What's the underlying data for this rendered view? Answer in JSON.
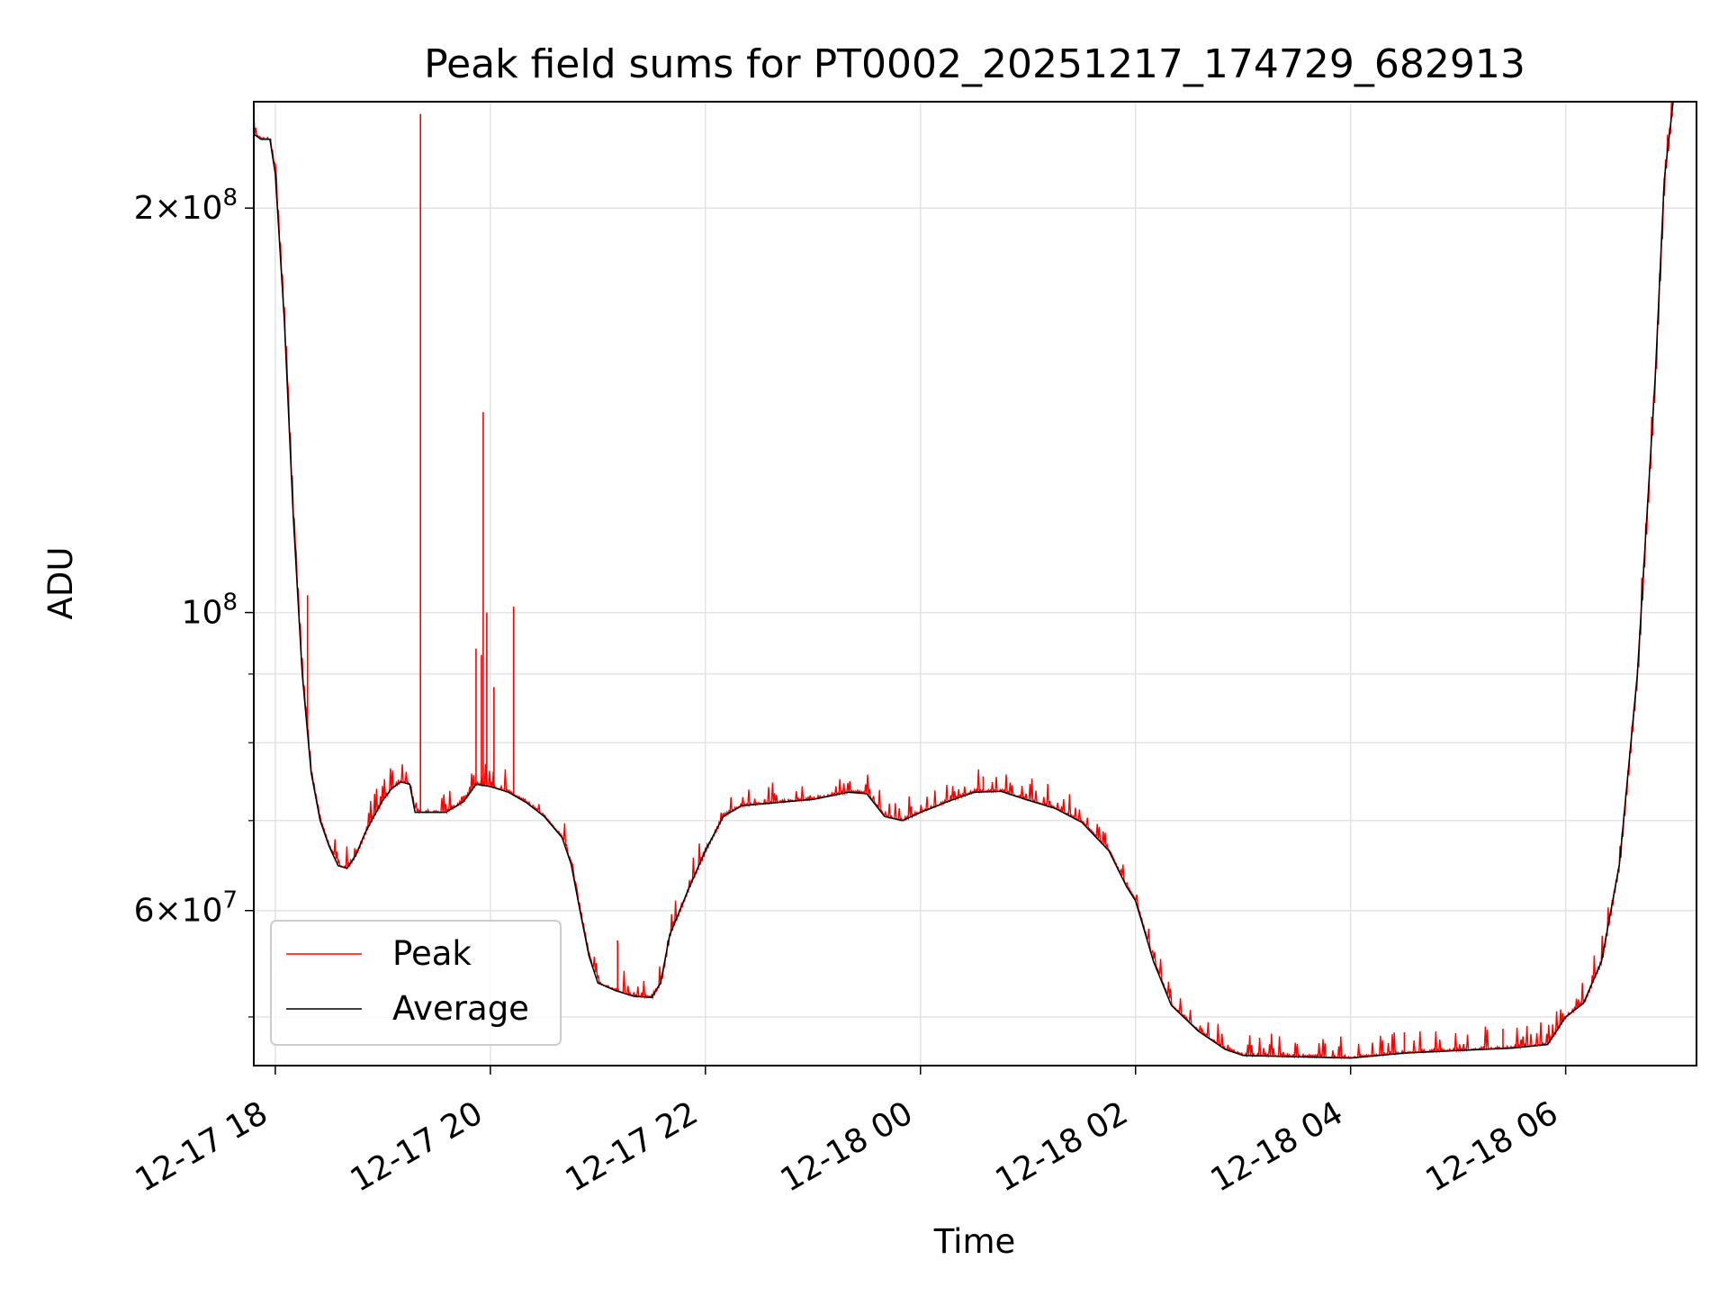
{
  "chart_data": {
    "type": "line",
    "title": "Peak field sums for PT0002_20251217_174729_682913",
    "xlabel": "Time",
    "ylabel": "ADU",
    "y_scale": "log",
    "ylim": [
      46000000,
      240000000
    ],
    "xlim": [
      "2025-12-17 17:48",
      "2025-12-18 07:13"
    ],
    "grid": true,
    "legend_position": "lower-left",
    "x_ticks": [
      {
        "t": "2025-12-17 18:00",
        "label": "12-17 18"
      },
      {
        "t": "2025-12-17 20:00",
        "label": "12-17 20"
      },
      {
        "t": "2025-12-17 22:00",
        "label": "12-17 22"
      },
      {
        "t": "2025-12-18 00:00",
        "label": "12-18 00"
      },
      {
        "t": "2025-12-18 02:00",
        "label": "12-18 02"
      },
      {
        "t": "2025-12-18 04:00",
        "label": "12-18 04"
      },
      {
        "t": "2025-12-18 06:00",
        "label": "12-18 06"
      }
    ],
    "y_ticks": [
      {
        "value": 60000000,
        "base": "6",
        "exp": "7"
      },
      {
        "value": 100000000,
        "base": "",
        "exp": "8"
      },
      {
        "value": 200000000,
        "base": "2",
        "exp": "8"
      }
    ],
    "y_minor_ticks": [
      50000000,
      70000000,
      80000000,
      90000000
    ],
    "series": [
      {
        "name": "Average",
        "color": "#000000",
        "points": [
          [
            "2025-12-17 17:48",
            227000000
          ],
          [
            "2025-12-17 17:52",
            225000000
          ],
          [
            "2025-12-17 17:57",
            225000000
          ],
          [
            "2025-12-17 18:00",
            212000000
          ],
          [
            "2025-12-17 18:05",
            165000000
          ],
          [
            "2025-12-17 18:10",
            118000000
          ],
          [
            "2025-12-17 18:15",
            90000000
          ],
          [
            "2025-12-17 18:20",
            76000000
          ],
          [
            "2025-12-17 18:25",
            70000000
          ],
          [
            "2025-12-17 18:30",
            67000000
          ],
          [
            "2025-12-17 18:35",
            64800000
          ],
          [
            "2025-12-17 18:40",
            64500000
          ],
          [
            "2025-12-17 18:45",
            66000000
          ],
          [
            "2025-12-17 18:50",
            68500000
          ],
          [
            "2025-12-17 18:55",
            70500000
          ],
          [
            "2025-12-17 19:00",
            72500000
          ],
          [
            "2025-12-17 19:05",
            74000000
          ],
          [
            "2025-12-17 19:10",
            74800000
          ],
          [
            "2025-12-17 19:15",
            74500000
          ],
          [
            "2025-12-17 19:18",
            71000000
          ],
          [
            "2025-12-17 19:25",
            71000000
          ],
          [
            "2025-12-17 19:35",
            71000000
          ],
          [
            "2025-12-17 19:45",
            72300000
          ],
          [
            "2025-12-17 19:52",
            74500000
          ],
          [
            "2025-12-17 20:00",
            74200000
          ],
          [
            "2025-12-17 20:10",
            73500000
          ],
          [
            "2025-12-17 20:20",
            72200000
          ],
          [
            "2025-12-17 20:30",
            70500000
          ],
          [
            "2025-12-17 20:40",
            68000000
          ],
          [
            "2025-12-17 20:45",
            65000000
          ],
          [
            "2025-12-17 20:50",
            60000000
          ],
          [
            "2025-12-17 20:55",
            55500000
          ],
          [
            "2025-12-17 21:00",
            53000000
          ],
          [
            "2025-12-17 21:10",
            52300000
          ],
          [
            "2025-12-17 21:20",
            51800000
          ],
          [
            "2025-12-17 21:30",
            51700000
          ],
          [
            "2025-12-17 21:35",
            53000000
          ],
          [
            "2025-12-17 21:40",
            57500000
          ],
          [
            "2025-12-17 21:50",
            62000000
          ],
          [
            "2025-12-17 22:00",
            66500000
          ],
          [
            "2025-12-17 22:10",
            70500000
          ],
          [
            "2025-12-17 22:20",
            71800000
          ],
          [
            "2025-12-17 22:40",
            72200000
          ],
          [
            "2025-12-17 23:00",
            72600000
          ],
          [
            "2025-12-17 23:20",
            73500000
          ],
          [
            "2025-12-17 23:30",
            73300000
          ],
          [
            "2025-12-17 23:40",
            70500000
          ],
          [
            "2025-12-17 23:50",
            70000000
          ],
          [
            "2025-12-18 00:00",
            71000000
          ],
          [
            "2025-12-18 00:15",
            72300000
          ],
          [
            "2025-12-18 00:30",
            73500000
          ],
          [
            "2025-12-18 00:45",
            73600000
          ],
          [
            "2025-12-18 01:00",
            72500000
          ],
          [
            "2025-12-18 01:15",
            71500000
          ],
          [
            "2025-12-18 01:30",
            69800000
          ],
          [
            "2025-12-18 01:45",
            66500000
          ],
          [
            "2025-12-18 01:55",
            62500000
          ],
          [
            "2025-12-18 02:00",
            61000000
          ],
          [
            "2025-12-18 02:10",
            55000000
          ],
          [
            "2025-12-18 02:20",
            51000000
          ],
          [
            "2025-12-18 02:35",
            48800000
          ],
          [
            "2025-12-18 02:50",
            47300000
          ],
          [
            "2025-12-18 03:00",
            46800000
          ],
          [
            "2025-12-18 03:30",
            46700000
          ],
          [
            "2025-12-18 04:00",
            46600000
          ],
          [
            "2025-12-18 04:30",
            47000000
          ],
          [
            "2025-12-18 05:00",
            47200000
          ],
          [
            "2025-12-18 05:30",
            47400000
          ],
          [
            "2025-12-18 05:50",
            47700000
          ],
          [
            "2025-12-18 06:00",
            50000000
          ],
          [
            "2025-12-18 06:10",
            51200000
          ],
          [
            "2025-12-18 06:20",
            55000000
          ],
          [
            "2025-12-18 06:30",
            65000000
          ],
          [
            "2025-12-18 06:40",
            90000000
          ],
          [
            "2025-12-18 06:50",
            150000000
          ],
          [
            "2025-12-18 06:55",
            210000000
          ],
          [
            "2025-12-18 07:00",
            240000000
          ]
        ]
      },
      {
        "name": "Peak",
        "color": "#ff0000",
        "spikes": [
          [
            "2025-12-17 18:18",
            103000000
          ],
          [
            "2025-12-17 19:21",
            235000000
          ],
          [
            "2025-12-17 19:55",
            93000000
          ],
          [
            "2025-12-17 19:52",
            94000000
          ],
          [
            "2025-12-17 19:56",
            141000000
          ],
          [
            "2025-12-17 19:58",
            100000000
          ],
          [
            "2025-12-17 20:02",
            88000000
          ],
          [
            "2025-12-17 20:13",
            101000000
          ],
          [
            "2025-12-17 21:11",
            57000000
          ],
          [
            "2025-12-18 00:35",
            75500000
          ],
          [
            "2025-12-18 04:30",
            48700000
          ],
          [
            "2025-12-18 05:25",
            49000000
          ],
          [
            "2025-12-18 05:55",
            48800000
          ]
        ]
      }
    ]
  }
}
